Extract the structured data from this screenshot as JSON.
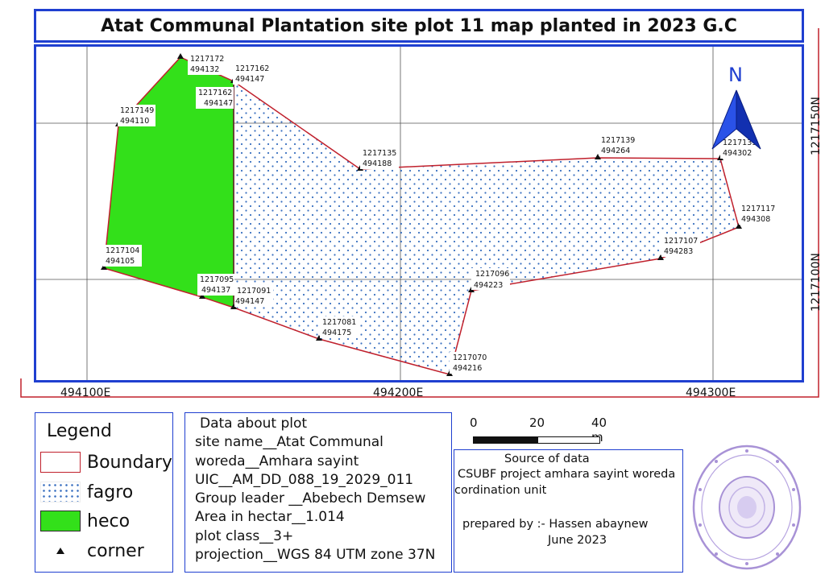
{
  "title": "Atat Communal Plantation site plot 11 map planted in 2023 G.C",
  "map": {
    "north_label": "N",
    "grid_labels_x": [
      "494100E",
      "494200E",
      "494300E"
    ],
    "grid_labels_y": [
      "1217150N",
      "1217100N"
    ],
    "corner_labels": [
      {
        "id": "c1",
        "n": "1217172",
        "e": "494132"
      },
      {
        "id": "c2",
        "n": "1217162",
        "e": "494147"
      },
      {
        "id": "c3",
        "n": "1217162",
        "e": "494147"
      },
      {
        "id": "c4",
        "n": "1217149",
        "e": "494110"
      },
      {
        "id": "c5",
        "n": "1217135",
        "e": "494188"
      },
      {
        "id": "c6",
        "n": "1217139",
        "e": "494264"
      },
      {
        "id": "c7",
        "n": "1217139",
        "e": "494302"
      },
      {
        "id": "c8",
        "n": "1217117",
        "e": "494308"
      },
      {
        "id": "c9",
        "n": "1217107",
        "e": "494283"
      },
      {
        "id": "c10",
        "n": "1217104",
        "e": "494105"
      },
      {
        "id": "c11",
        "n": "1217096",
        "e": "494223"
      },
      {
        "id": "c12",
        "n": "1217095",
        "e": "494137"
      },
      {
        "id": "c13",
        "n": "1217091",
        "e": "494147"
      },
      {
        "id": "c14",
        "n": "1217081",
        "e": "494175"
      },
      {
        "id": "c15",
        "n": "1217070",
        "e": "494216"
      }
    ],
    "colors": {
      "boundary": "#c0202c",
      "heco": "#33e01a",
      "fagro_dot": "#3a70c0",
      "frame": "#1f3fd0",
      "arrow": "#1a3fc8"
    }
  },
  "legend": {
    "title": "Legend",
    "items": [
      {
        "label": "Boundary",
        "symbol": "red-outline-box"
      },
      {
        "label": "fagro",
        "symbol": "blue-dot-pattern"
      },
      {
        "label": "heco",
        "symbol": "green-fill"
      },
      {
        "label": "corner",
        "symbol": "black-triangle-icon"
      }
    ]
  },
  "plot_info": {
    "heading": "Data about plot",
    "lines": [
      "site name__Atat Communal",
      "woreda__Amhara sayint",
      "UIC__AM_DD_088_19_2029_011",
      "Group leader __Abebech Demsew",
      "Area in hectar__1.014",
      "plot class__3+",
      "projection__WGS 84 UTM zone 37N"
    ]
  },
  "scale": {
    "labels": [
      "0",
      "20",
      "40 m"
    ]
  },
  "source": {
    "heading": "Source of data",
    "line1": "CSUBF project amhara sayint woreda",
    "line2": "cordination unit",
    "prepared": "prepared by :- Hassen abaynew",
    "date": "June 2023"
  }
}
